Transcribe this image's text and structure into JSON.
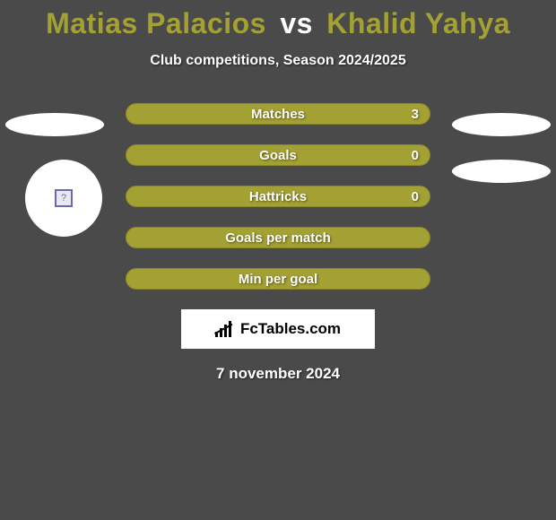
{
  "title": {
    "player1": "Matias Palacios",
    "vs": "vs",
    "player2": "Khalid Yahya",
    "player1_color": "#a3a133",
    "player2_color": "#a3a133",
    "vs_color": "#ffffff",
    "fontsize": 32
  },
  "subtitle": "Club competitions, Season 2024/2025",
  "rows": [
    {
      "label": "Matches",
      "value": "3"
    },
    {
      "label": "Goals",
      "value": "0"
    },
    {
      "label": "Hattricks",
      "value": "0"
    },
    {
      "label": "Goals per match",
      "value": ""
    },
    {
      "label": "Min per goal",
      "value": ""
    }
  ],
  "styling": {
    "type": "infographic",
    "background_color": "#4a4a4a",
    "pill_bg_color": "#a3a133",
    "pill_border_color": "#8a8828",
    "pill_width": 340,
    "pill_height": 24,
    "pill_radius": 12,
    "pill_text_color": "#ffffff",
    "pill_label_fontsize": 15,
    "ellipse_color": "#ffffff",
    "ellipse_width": 110,
    "ellipse_height": 26,
    "avatar_diameter": 86,
    "brand_box_bg": "#ffffff",
    "brand_box_width": 216,
    "brand_box_height": 44
  },
  "brand": {
    "text": "FcTables.com"
  },
  "date": "7 november 2024",
  "avatar_placeholder": "?"
}
